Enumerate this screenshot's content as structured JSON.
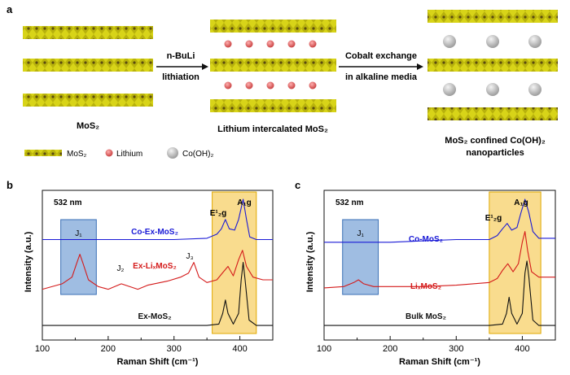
{
  "panel_a": {
    "letter": "a",
    "stage1_label": "MoS₂",
    "arrow1_top": "n-BuLi",
    "arrow1_bottom": "lithiation",
    "stage2_label": "Lithium intercalated MoS₂",
    "arrow2_top": "Cobalt exchange",
    "arrow2_bottom": "in alkaline media",
    "stage3_label_line1": "MoS₂ confined Co(OH)₂",
    "stage3_label_line2": "nanoparticles",
    "legend": {
      "mos2": "MoS₂",
      "lithium": "Lithium",
      "cooh2": "Co(OH)₂"
    },
    "colors": {
      "layer": "#c9c60f",
      "layer_dark": "#5a4a10",
      "lithium": "#e05a5a",
      "cooh2": "#c8c8c8"
    }
  },
  "chart_data": [
    {
      "type": "line",
      "panel": "b",
      "laser_label": "532 nm",
      "xlabel": "Raman Shift (cm⁻¹)",
      "ylabel": "Intensity (a.u.)",
      "xlim": [
        100,
        450
      ],
      "xticks": [
        100,
        200,
        300,
        400
      ],
      "highlight_regions": [
        {
          "name": "J1 region",
          "x": [
            128,
            182
          ],
          "color": "#7fa7d8"
        },
        {
          "name": "E2g/A1g region",
          "x": [
            358,
            425
          ],
          "color": "#f5c542"
        }
      ],
      "peak_labels": {
        "j1": "J₁",
        "j2": "J₂",
        "j3": "J₃",
        "e2g": "E¹₂g",
        "a1g": "A₁g"
      },
      "series": [
        {
          "name": "Co-Ex-MoS₂",
          "color": "#1a1ad6",
          "x": [
            100,
            150,
            200,
            250,
            300,
            350,
            365,
            372,
            378,
            384,
            392,
            398,
            405,
            410,
            415,
            425,
            450
          ],
          "values": [
            0.7,
            0.7,
            0.7,
            0.7,
            0.7,
            0.71,
            0.74,
            0.78,
            0.85,
            0.78,
            0.77,
            0.85,
            1.0,
            0.85,
            0.72,
            0.7,
            0.7
          ]
        },
        {
          "name": "Ex-LiₓMoS₂",
          "color": "#d41a1a",
          "x": [
            100,
            130,
            145,
            152,
            157,
            162,
            170,
            185,
            200,
            220,
            245,
            260,
            290,
            310,
            322,
            330,
            338,
            350,
            365,
            375,
            382,
            390,
            398,
            404,
            410,
            420,
            435,
            450
          ],
          "values": [
            0.33,
            0.37,
            0.42,
            0.52,
            0.59,
            0.52,
            0.4,
            0.35,
            0.33,
            0.37,
            0.33,
            0.36,
            0.39,
            0.42,
            0.45,
            0.53,
            0.42,
            0.38,
            0.4,
            0.46,
            0.5,
            0.43,
            0.55,
            0.62,
            0.5,
            0.42,
            0.4,
            0.4
          ]
        },
        {
          "name": "Ex-MoS₂",
          "color": "#111111",
          "x": [
            100,
            150,
            200,
            250,
            300,
            350,
            368,
            374,
            378,
            382,
            390,
            398,
            402,
            405,
            408,
            414,
            425,
            450
          ],
          "values": [
            0.06,
            0.06,
            0.06,
            0.06,
            0.06,
            0.06,
            0.07,
            0.15,
            0.25,
            0.15,
            0.07,
            0.15,
            0.4,
            0.53,
            0.4,
            0.1,
            0.06,
            0.06
          ]
        }
      ],
      "series_labels": {
        "co": "Co-Ex-MoS₂",
        "li": "Ex-LiₓMoS₂",
        "bulk": "Ex-MoS₂"
      }
    },
    {
      "type": "line",
      "panel": "c",
      "laser_label": "532 nm",
      "xlabel": "Raman Shift (cm⁻¹)",
      "ylabel": "Intensity (a.u.)",
      "xlim": [
        100,
        450
      ],
      "xticks": [
        100,
        200,
        300,
        400
      ],
      "highlight_regions": [
        {
          "name": "J1 region",
          "x": [
            128,
            182
          ],
          "color": "#7fa7d8"
        },
        {
          "name": "E2g/A1g region",
          "x": [
            350,
            428
          ],
          "color": "#f5c542"
        }
      ],
      "peak_labels": {
        "j1": "J₁",
        "e2g": "E¹₂g",
        "a1g": "A₁g"
      },
      "series": [
        {
          "name": "Co-MoS₂",
          "color": "#1a1ad6",
          "x": [
            100,
            150,
            200,
            250,
            300,
            350,
            362,
            370,
            377,
            384,
            392,
            398,
            404,
            410,
            416,
            425,
            450
          ],
          "values": [
            0.68,
            0.68,
            0.68,
            0.69,
            0.7,
            0.7,
            0.73,
            0.78,
            0.82,
            0.77,
            0.79,
            0.9,
            1.0,
            0.9,
            0.76,
            0.71,
            0.71
          ]
        },
        {
          "name": "LiₓMoS₂",
          "color": "#d41a1a",
          "x": [
            100,
            130,
            145,
            152,
            160,
            175,
            200,
            250,
            300,
            350,
            362,
            370,
            378,
            386,
            394,
            400,
            404,
            408,
            414,
            425,
            450
          ],
          "values": [
            0.34,
            0.35,
            0.38,
            0.4,
            0.37,
            0.35,
            0.35,
            0.35,
            0.36,
            0.38,
            0.41,
            0.47,
            0.52,
            0.46,
            0.52,
            0.68,
            0.76,
            0.62,
            0.46,
            0.42,
            0.42
          ]
        },
        {
          "name": "Bulk MoS₂",
          "color": "#111111",
          "x": [
            100,
            150,
            200,
            250,
            300,
            350,
            370,
            376,
            380,
            384,
            392,
            400,
            404,
            407,
            410,
            416,
            425,
            450
          ],
          "values": [
            0.06,
            0.06,
            0.06,
            0.06,
            0.06,
            0.06,
            0.07,
            0.15,
            0.27,
            0.15,
            0.07,
            0.15,
            0.45,
            0.54,
            0.42,
            0.1,
            0.06,
            0.06
          ]
        }
      ],
      "series_labels": {
        "co": "Co-MoS₂",
        "li": "LiₓMoS₂",
        "bulk": "Bulk MoS₂"
      }
    }
  ]
}
